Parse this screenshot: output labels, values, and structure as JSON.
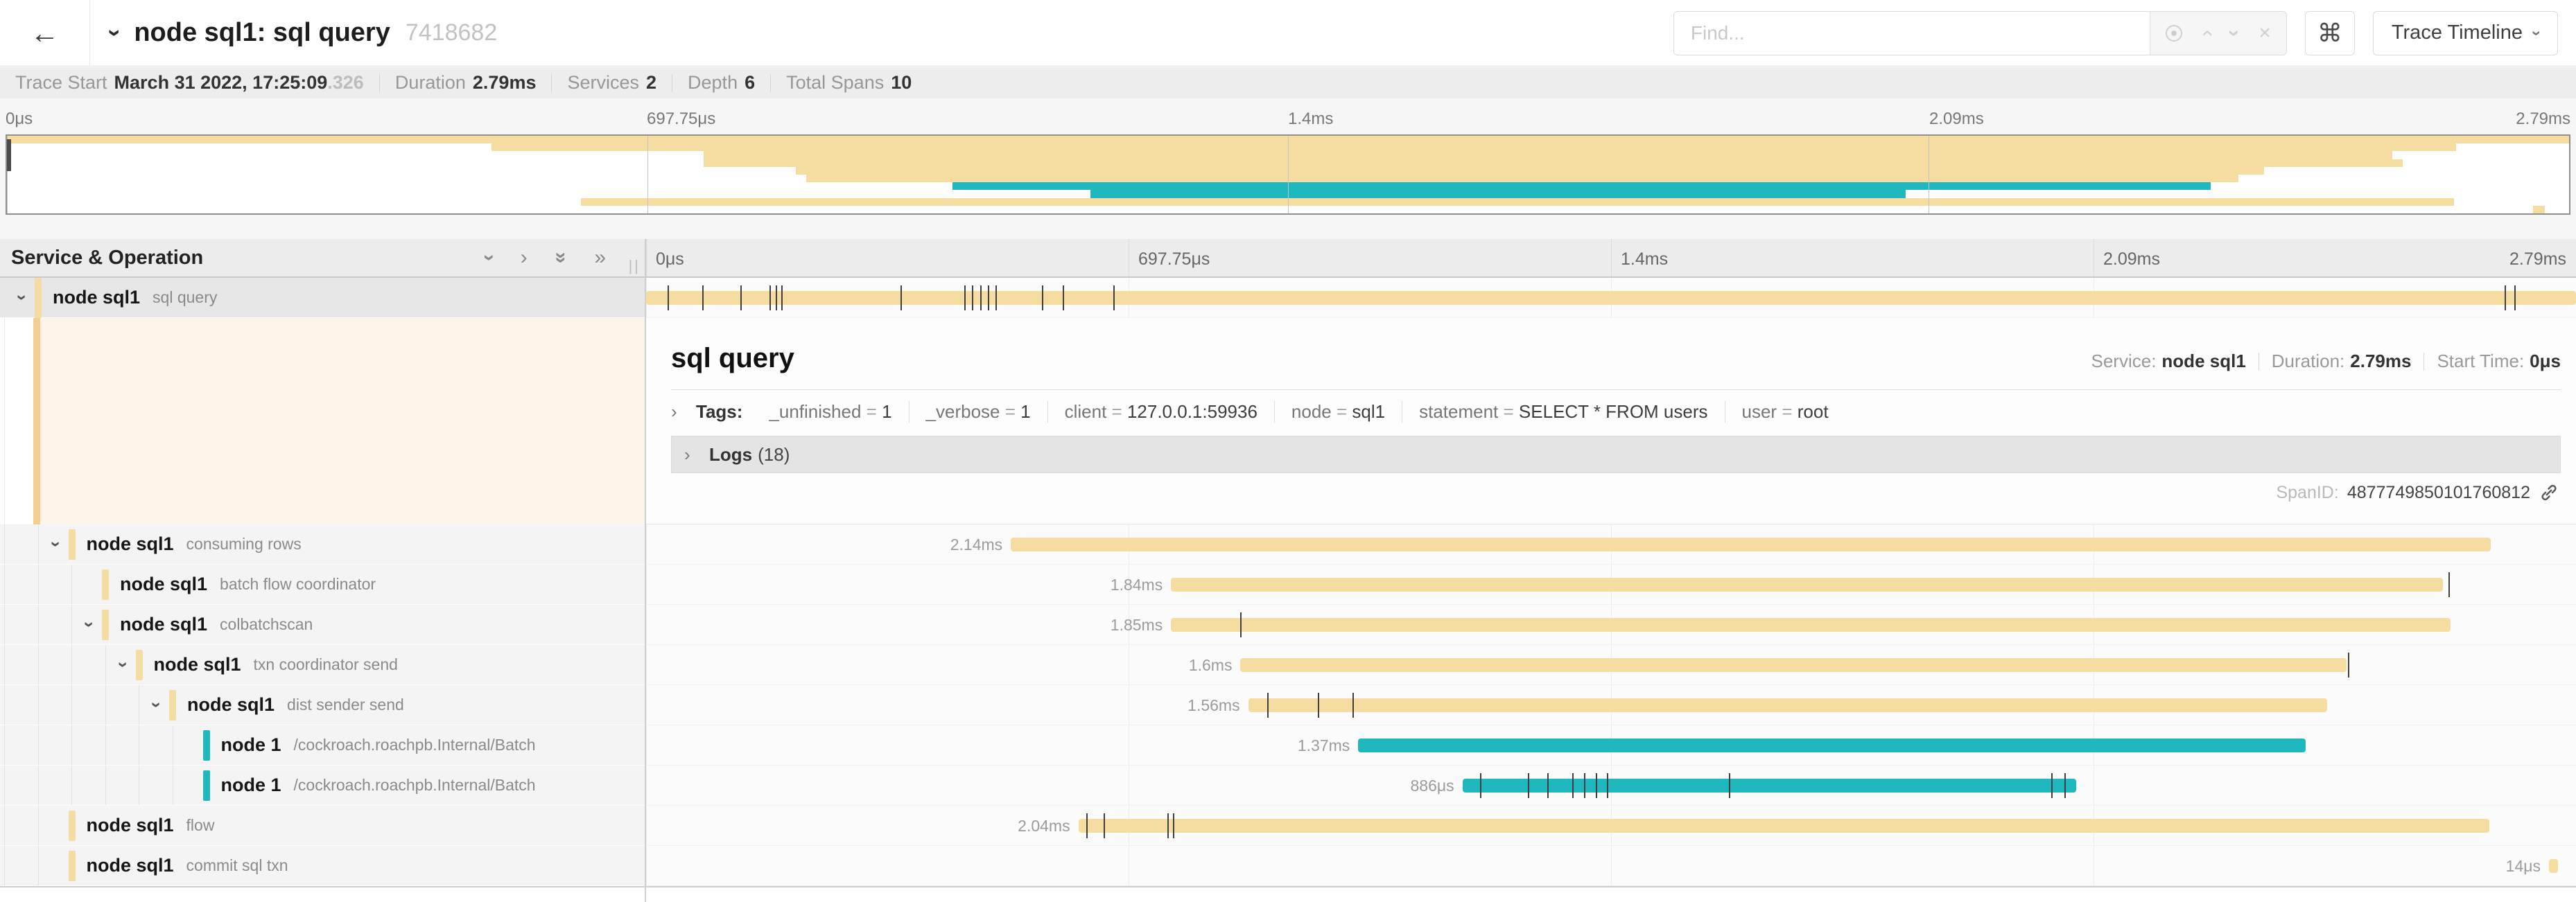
{
  "header": {
    "back_icon": "←",
    "title": "node sql1: sql query",
    "trace_id": "7418682",
    "find_placeholder": "Find...",
    "keyboard_icon": "⌘",
    "view_label": "Trace Timeline"
  },
  "trace_stats": {
    "start_label": "Trace Start",
    "start_value": "March 31 2022, 17:25:09",
    "start_frac": ".326",
    "duration_label": "Duration",
    "duration_value": "2.79ms",
    "services_label": "Services",
    "services_value": "2",
    "depth_label": "Depth",
    "depth_value": "6",
    "spans_label": "Total Spans",
    "spans_value": "10"
  },
  "timeline": {
    "left_header": "Service & Operation",
    "axis_ticks": [
      "0μs",
      "697.75μs",
      "1.4ms",
      "2.09ms",
      "2.79ms"
    ]
  },
  "detail": {
    "title": "sql query",
    "service_label": "Service:",
    "service_value": "node sql1",
    "duration_label": "Duration:",
    "duration_value": "2.79ms",
    "start_label": "Start Time:",
    "start_value": "0μs",
    "tags_label": "Tags:",
    "tags": [
      {
        "key": "_unfinished",
        "value": "1"
      },
      {
        "key": "_verbose",
        "value": "1"
      },
      {
        "key": "client",
        "value": "127.0.0.1:59936"
      },
      {
        "key": "node",
        "value": "sql1"
      },
      {
        "key": "statement",
        "value": "SELECT * FROM users"
      },
      {
        "key": "user",
        "value": "root"
      }
    ],
    "logs_label": "Logs",
    "logs_count": "(18)",
    "spanid_label": "SpanID:",
    "spanid_value": "4877749850101760812"
  },
  "colors": {
    "span_tan": "#f5dca1",
    "span_teal": "#1fb8be",
    "selected_accent": "#f2cf90",
    "selected_bg": "#fbf4e8"
  },
  "spans": [
    {
      "service": "node sql1",
      "operation": "sql query",
      "depth": 0,
      "color": "tan",
      "start_pct": 0,
      "width_pct": 100,
      "duration_label": "",
      "expandable": true,
      "selected": true,
      "ticks": [
        1.1,
        2.9,
        4.9,
        6.4,
        6.7,
        7.0,
        13.2,
        16.5,
        16.9,
        17.3,
        17.7,
        18.1,
        20.5,
        21.6,
        24.2,
        96.3,
        96.8
      ]
    },
    {
      "service": "node sql1",
      "operation": "consuming rows",
      "depth": 1,
      "color": "tan",
      "start_pct": 18.9,
      "width_pct": 76.7,
      "duration_label": "2.14ms",
      "expandable": true,
      "ticks": []
    },
    {
      "service": "node sql1",
      "operation": "batch flow coordinator",
      "depth": 2,
      "color": "tan",
      "start_pct": 27.2,
      "width_pct": 65.9,
      "duration_label": "1.84ms",
      "expandable": false,
      "ticks": [
        93.4
      ]
    },
    {
      "service": "node sql1",
      "operation": "colbatchscan",
      "depth": 2,
      "color": "tan",
      "start_pct": 27.2,
      "width_pct": 66.3,
      "duration_label": "1.85ms",
      "expandable": true,
      "ticks": [
        30.8
      ]
    },
    {
      "service": "node sql1",
      "operation": "txn coordinator send",
      "depth": 3,
      "color": "tan",
      "start_pct": 30.8,
      "width_pct": 57.3,
      "duration_label": "1.6ms",
      "expandable": true,
      "ticks": [
        88.2
      ]
    },
    {
      "service": "node sql1",
      "operation": "dist sender send",
      "depth": 4,
      "color": "tan",
      "start_pct": 31.2,
      "width_pct": 55.9,
      "duration_label": "1.56ms",
      "expandable": true,
      "ticks": [
        32.2,
        34.8,
        36.6
      ]
    },
    {
      "service": "node 1",
      "operation": "/cockroach.roachpb.Internal/Batch",
      "depth": 5,
      "color": "teal",
      "start_pct": 36.9,
      "width_pct": 49.1,
      "duration_label": "1.37ms",
      "expandable": false,
      "ticks": []
    },
    {
      "service": "node 1",
      "operation": "/cockroach.roachpb.Internal/Batch",
      "depth": 5,
      "color": "teal",
      "start_pct": 42.3,
      "width_pct": 31.8,
      "duration_label": "886μs",
      "expandable": false,
      "ticks": [
        43.2,
        45.7,
        46.7,
        48.0,
        48.6,
        49.2,
        49.8,
        56.1,
        72.8,
        73.5
      ]
    },
    {
      "service": "node sql1",
      "operation": "flow",
      "depth": 1,
      "color": "tan",
      "start_pct": 22.4,
      "width_pct": 73.1,
      "duration_label": "2.04ms",
      "expandable": false,
      "ticks": [
        22.8,
        23.7,
        27.0,
        27.3
      ]
    },
    {
      "service": "node sql1",
      "operation": "commit sql txn",
      "depth": 1,
      "color": "tan",
      "start_pct": 98.6,
      "width_pct": 0.45,
      "duration_label": "14μs",
      "expandable": false,
      "ticks": []
    }
  ]
}
